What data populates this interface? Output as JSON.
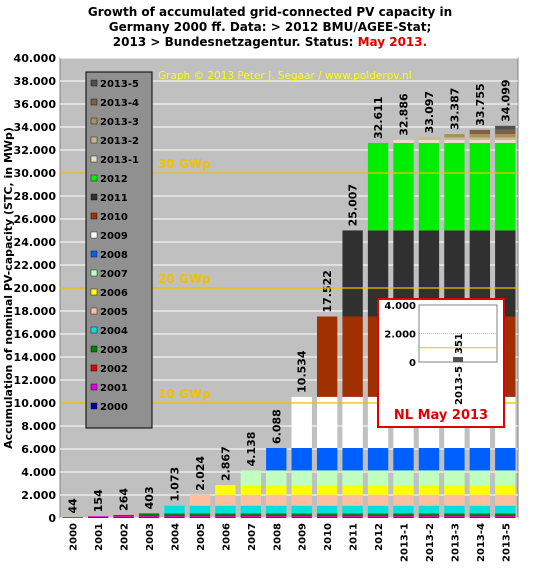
{
  "chart_data": {
    "type": "bar",
    "title_lines": [
      "Growth of accumulated  grid-connected  PV capacity in",
      "Germany 2000 ff. Data: > 2012 BMU/AGEE-Stat;",
      "2013 > Bundesnetzagentur.  Status: "
    ],
    "title_highlight": "May 2013.",
    "ylabel": "Accumulation of nominal PV-capacity (STC, in MWp)",
    "ylim": [
      0,
      40000
    ],
    "yticks": [
      "0",
      "2.000",
      "4.000",
      "6.000",
      "8.000",
      "10.000",
      "12.000",
      "14.000",
      "16.000",
      "18.000",
      "20.000",
      "22.000",
      "24.000",
      "26.000",
      "28.000",
      "30.000",
      "32.000",
      "34.000",
      "36.000",
      "38.000",
      "40.000"
    ],
    "categories": [
      "2000",
      "2001",
      "2002",
      "2003",
      "2004",
      "2005",
      "2006",
      "2007",
      "2008",
      "2009",
      "2010",
      "2011",
      "2012",
      "2013-1",
      "2013-2",
      "2013-3",
      "2013-4",
      "2013-5"
    ],
    "totals": [
      44,
      154,
      264,
      403,
      1073,
      2024,
      2867,
      4138,
      6088,
      10534,
      17522,
      25007,
      32611,
      32886,
      33097,
      33387,
      33755,
      34099
    ],
    "total_labels": [
      "44",
      "154",
      "264",
      "403",
      "1.073",
      "2.024",
      "2.867",
      "4.138",
      "6.088",
      "10.534",
      "17.522",
      "25.007",
      "32.611",
      "32.886",
      "33.097",
      "33.387",
      "33.755",
      "34.099"
    ],
    "series_colors": [
      "#0000a0",
      "#e000e0",
      "#e00000",
      "#008000",
      "#00e0e0",
      "#ffc0a0",
      "#ffff00",
      "#c0ffc0",
      "#0060ff",
      "#ffffff",
      "#a03000",
      "#303030",
      "#00ee00",
      "#e8e0c8",
      "#c8b890",
      "#a89060",
      "#806040",
      "#505050"
    ],
    "legend": [
      "2013-5",
      "2013-4",
      "2013-3",
      "2013-2",
      "2013-1",
      "2012",
      "2011",
      "2010",
      "2009",
      "2008",
      "2007",
      "2006",
      "2005",
      "2004",
      "2003",
      "2002",
      "2001",
      "2000"
    ],
    "legend_colors": [
      "#505050",
      "#806040",
      "#a89060",
      "#c8b890",
      "#e8e0c8",
      "#00ee00",
      "#303030",
      "#a03000",
      "#ffffff",
      "#0060ff",
      "#c0ffc0",
      "#ffff00",
      "#ffc0a0",
      "#00e0e0",
      "#008000",
      "#e00000",
      "#e000e0",
      "#0000a0"
    ],
    "legend_placement": "left inside plot",
    "reference_lines": [
      {
        "value": 10000,
        "label": "10 GWp"
      },
      {
        "value": 20000,
        "label": "20 GWp"
      },
      {
        "value": 30000,
        "label": "30 GWp"
      }
    ],
    "credit": "Graph © 2013 Peter J. Segaar / www.polderpv.nl",
    "plot_bg": "#c0c0c0",
    "grid": true,
    "inset": {
      "ylim": [
        0,
        4000
      ],
      "yticks": [
        "0",
        "2.000",
        "4.000"
      ],
      "category": "2013-5",
      "value": 351,
      "value_label": "351",
      "caption": "NL May 2013",
      "border_color": "#e00000"
    }
  }
}
